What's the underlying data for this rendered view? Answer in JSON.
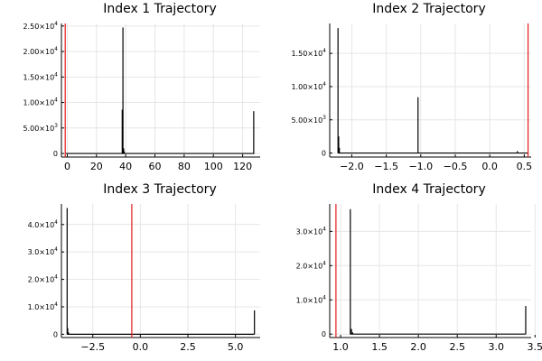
{
  "chart_data": [
    {
      "type": "histogram",
      "title": "Index 1 Trajectory",
      "xlim": [
        -4,
        132
      ],
      "ylim": [
        -700,
        25500
      ],
      "xticks": [
        {
          "v": 0,
          "label": "0"
        },
        {
          "v": 20,
          "label": "20"
        },
        {
          "v": 40,
          "label": "40"
        },
        {
          "v": 60,
          "label": "60"
        },
        {
          "v": 80,
          "label": "80"
        },
        {
          "v": 100,
          "label": "100"
        },
        {
          "v": 120,
          "label": "120"
        }
      ],
      "yticks": [
        {
          "v": 0,
          "base": "0",
          "exp": ""
        },
        {
          "v": 5000,
          "base": "5.00×10",
          "exp": "3"
        },
        {
          "v": 10000,
          "base": "1.00×10",
          "exp": "4"
        },
        {
          "v": 15000,
          "base": "1.50×10",
          "exp": "4"
        },
        {
          "v": 20000,
          "base": "2.00×10",
          "exp": "4"
        },
        {
          "v": 25000,
          "base": "2.50×10",
          "exp": "4"
        }
      ],
      "baseline": {
        "x_start": -1,
        "x_end": 128
      },
      "spikes": [
        {
          "x": 37.6,
          "value": 8600
        },
        {
          "x": 38.1,
          "value": 24700
        },
        {
          "x": 38.6,
          "value": 1000
        },
        {
          "x": 39.0,
          "value": 400
        },
        {
          "x": 127.6,
          "value": 8300
        }
      ],
      "reference_line": {
        "x": -1.4,
        "color": "#e31a1c"
      },
      "grid": true
    },
    {
      "type": "histogram",
      "title": "Index 2 Trajectory",
      "xlim": [
        -2.32,
        0.6
      ],
      "ylim": [
        -600,
        19500
      ],
      "xticks": [
        {
          "v": -2.0,
          "label": "−2.0"
        },
        {
          "v": -1.5,
          "label": "−1.5"
        },
        {
          "v": -1.0,
          "label": "−1.0"
        },
        {
          "v": -0.5,
          "label": "−0.5"
        },
        {
          "v": 0.0,
          "label": "0.0"
        },
        {
          "v": 0.5,
          "label": "0.5"
        }
      ],
      "yticks": [
        {
          "v": 0,
          "base": "0",
          "exp": ""
        },
        {
          "v": 5000,
          "base": "5.00×10",
          "exp": "3"
        },
        {
          "v": 10000,
          "base": "1.00×10",
          "exp": "4"
        },
        {
          "v": 15000,
          "base": "1.50×10",
          "exp": "4"
        }
      ],
      "baseline": {
        "x_start": -2.2,
        "x_end": 0.55
      },
      "spikes": [
        {
          "x": -2.2,
          "value": 18800
        },
        {
          "x": -2.19,
          "value": 2500
        },
        {
          "x": -2.18,
          "value": 800
        },
        {
          "x": -1.04,
          "value": 8400
        },
        {
          "x": 0.4,
          "value": 300
        }
      ],
      "reference_line": {
        "x": 0.555,
        "color": "#e31a1c"
      },
      "grid": true
    },
    {
      "type": "histogram",
      "title": "Index 3 Trajectory",
      "xlim": [
        -4.15,
        6.3
      ],
      "ylim": [
        -1200,
        47500
      ],
      "xticks": [
        {
          "v": -2.5,
          "label": "−2.5"
        },
        {
          "v": 0.0,
          "label": "0.0"
        },
        {
          "v": 2.5,
          "label": "2.5"
        },
        {
          "v": 5.0,
          "label": "5.0"
        }
      ],
      "yticks": [
        {
          "v": 0,
          "base": "0",
          "exp": ""
        },
        {
          "v": 10000,
          "base": "1.0×10",
          "exp": "4"
        },
        {
          "v": 20000,
          "base": "2.0×10",
          "exp": "4"
        },
        {
          "v": 30000,
          "base": "3.0×10",
          "exp": "4"
        },
        {
          "v": 40000,
          "base": "4.0×10",
          "exp": "4"
        }
      ],
      "baseline": {
        "x_start": -3.85,
        "x_end": 6.0
      },
      "spikes": [
        {
          "x": -3.85,
          "value": 46000
        },
        {
          "x": -3.82,
          "value": 2200
        },
        {
          "x": -3.78,
          "value": 700
        },
        {
          "x": 6.0,
          "value": 8700
        }
      ],
      "reference_line": {
        "x": -0.45,
        "color": "#e31a1c"
      },
      "grid": true
    },
    {
      "type": "histogram",
      "title": "Index 4 Trajectory",
      "xlim": [
        0.86,
        3.45
      ],
      "ylim": [
        -1000,
        38000
      ],
      "xticks": [
        {
          "v": 1.0,
          "label": "1.0"
        },
        {
          "v": 1.5,
          "label": "1.5"
        },
        {
          "v": 2.0,
          "label": "2.0"
        },
        {
          "v": 2.5,
          "label": "2.5"
        },
        {
          "v": 3.0,
          "label": "3.0"
        },
        {
          "v": 3.5,
          "label": "3.5"
        }
      ],
      "yticks": [
        {
          "v": 0,
          "base": "0",
          "exp": ""
        },
        {
          "v": 10000,
          "base": "1.0×10",
          "exp": "4"
        },
        {
          "v": 20000,
          "base": "2.0×10",
          "exp": "4"
        },
        {
          "v": 30000,
          "base": "3.0×10",
          "exp": "4"
        }
      ],
      "baseline": {
        "x_start": 1.12,
        "x_end": 3.38
      },
      "spikes": [
        {
          "x": 1.125,
          "value": 36500
        },
        {
          "x": 1.14,
          "value": 1500
        },
        {
          "x": 1.155,
          "value": 500
        },
        {
          "x": 3.38,
          "value": 8200
        }
      ],
      "reference_line": {
        "x": 0.94,
        "color": "#e31a1c"
      },
      "grid": true
    }
  ]
}
